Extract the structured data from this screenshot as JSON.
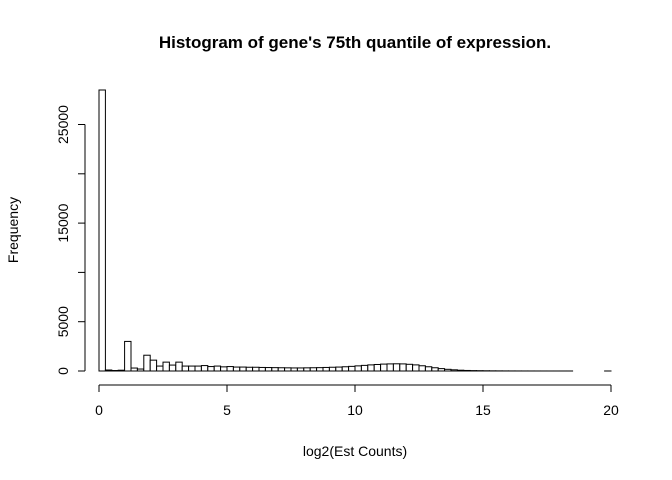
{
  "chart_data": {
    "type": "bar",
    "title": "Histogram of gene's 75th quantile of expression.",
    "xlabel": "log2(Est Counts)",
    "ylabel": "Frequency",
    "xlim": [
      0,
      20
    ],
    "ylim": [
      0,
      28500
    ],
    "xticks": [
      "0",
      "5",
      "10",
      "15",
      "20"
    ],
    "yticks": [
      "0",
      "5000",
      "15000",
      "25000"
    ],
    "bin_width": 0.25,
    "bins": [
      {
        "x": 0.0,
        "count": 28500
      },
      {
        "x": 0.25,
        "count": 100
      },
      {
        "x": 0.5,
        "count": 50
      },
      {
        "x": 0.75,
        "count": 80
      },
      {
        "x": 1.0,
        "count": 3000
      },
      {
        "x": 1.25,
        "count": 300
      },
      {
        "x": 1.5,
        "count": 200
      },
      {
        "x": 1.75,
        "count": 1600
      },
      {
        "x": 2.0,
        "count": 1100
      },
      {
        "x": 2.25,
        "count": 500
      },
      {
        "x": 2.5,
        "count": 900
      },
      {
        "x": 2.75,
        "count": 600
      },
      {
        "x": 3.0,
        "count": 900
      },
      {
        "x": 3.25,
        "count": 500
      },
      {
        "x": 3.5,
        "count": 500
      },
      {
        "x": 3.75,
        "count": 500
      },
      {
        "x": 4.0,
        "count": 550
      },
      {
        "x": 4.25,
        "count": 450
      },
      {
        "x": 4.5,
        "count": 500
      },
      {
        "x": 4.75,
        "count": 420
      },
      {
        "x": 5.0,
        "count": 450
      },
      {
        "x": 5.25,
        "count": 400
      },
      {
        "x": 5.5,
        "count": 400
      },
      {
        "x": 5.75,
        "count": 380
      },
      {
        "x": 6.0,
        "count": 380
      },
      {
        "x": 6.25,
        "count": 360
      },
      {
        "x": 6.5,
        "count": 350
      },
      {
        "x": 6.75,
        "count": 340
      },
      {
        "x": 7.0,
        "count": 330
      },
      {
        "x": 7.25,
        "count": 320
      },
      {
        "x": 7.5,
        "count": 310
      },
      {
        "x": 7.75,
        "count": 310
      },
      {
        "x": 8.0,
        "count": 320
      },
      {
        "x": 8.25,
        "count": 330
      },
      {
        "x": 8.5,
        "count": 340
      },
      {
        "x": 8.75,
        "count": 360
      },
      {
        "x": 9.0,
        "count": 380
      },
      {
        "x": 9.25,
        "count": 400
      },
      {
        "x": 9.5,
        "count": 430
      },
      {
        "x": 9.75,
        "count": 470
      },
      {
        "x": 10.0,
        "count": 520
      },
      {
        "x": 10.25,
        "count": 570
      },
      {
        "x": 10.5,
        "count": 620
      },
      {
        "x": 10.75,
        "count": 660
      },
      {
        "x": 11.0,
        "count": 700
      },
      {
        "x": 11.25,
        "count": 720
      },
      {
        "x": 11.5,
        "count": 730
      },
      {
        "x": 11.75,
        "count": 720
      },
      {
        "x": 12.0,
        "count": 680
      },
      {
        "x": 12.25,
        "count": 620
      },
      {
        "x": 12.5,
        "count": 530
      },
      {
        "x": 12.75,
        "count": 430
      },
      {
        "x": 13.0,
        "count": 330
      },
      {
        "x": 13.25,
        "count": 240
      },
      {
        "x": 13.5,
        "count": 170
      },
      {
        "x": 13.75,
        "count": 120
      },
      {
        "x": 14.0,
        "count": 80
      },
      {
        "x": 14.25,
        "count": 55
      },
      {
        "x": 14.5,
        "count": 40
      },
      {
        "x": 14.75,
        "count": 30
      },
      {
        "x": 15.0,
        "count": 22
      },
      {
        "x": 15.25,
        "count": 16
      },
      {
        "x": 15.5,
        "count": 12
      },
      {
        "x": 15.75,
        "count": 9
      },
      {
        "x": 16.0,
        "count": 7
      },
      {
        "x": 16.25,
        "count": 5
      },
      {
        "x": 16.5,
        "count": 4
      },
      {
        "x": 16.75,
        "count": 3
      },
      {
        "x": 17.0,
        "count": 2
      },
      {
        "x": 17.25,
        "count": 2
      },
      {
        "x": 17.5,
        "count": 1
      },
      {
        "x": 17.75,
        "count": 1
      },
      {
        "x": 18.0,
        "count": 1
      },
      {
        "x": 18.25,
        "count": 1
      },
      {
        "x": 18.5,
        "count": 0
      },
      {
        "x": 18.75,
        "count": 0
      },
      {
        "x": 19.0,
        "count": 0
      },
      {
        "x": 19.25,
        "count": 0
      },
      {
        "x": 19.5,
        "count": 0
      },
      {
        "x": 19.75,
        "count": 1
      }
    ],
    "grid": false,
    "legend": "none"
  }
}
